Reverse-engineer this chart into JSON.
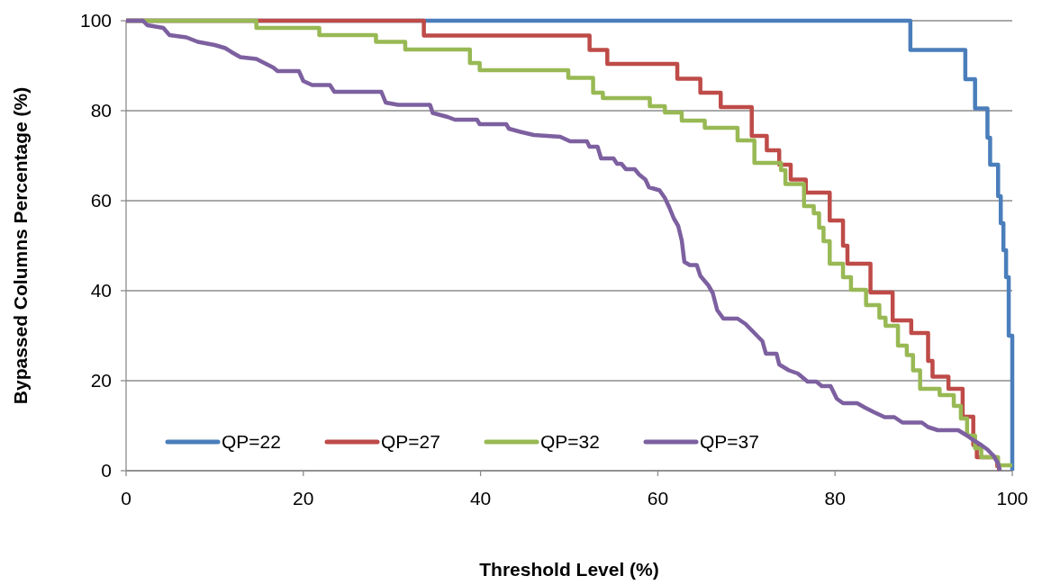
{
  "chart_data": {
    "type": "step",
    "xlabel": "Threshold Level (%)",
    "ylabel": "Bypassed Columns Percentage (%)",
    "xlim": [
      0,
      100
    ],
    "ylim": [
      0,
      100
    ],
    "xticks": [
      0,
      20,
      40,
      60,
      80,
      100
    ],
    "yticks": [
      0,
      20,
      40,
      60,
      80,
      100
    ],
    "grid": "y",
    "legend": "bottom left",
    "line_style": "solid",
    "marker": "none",
    "series": [
      {
        "name": "QP=22",
        "color": "#4a7ebb",
        "x": [
          0,
          88.5,
          94.7,
          95.8,
          97.2,
          97.5,
          98.4,
          98.7,
          99.0,
          99.3,
          99.6,
          100
        ],
        "values": [
          100,
          93.5,
          87,
          80.5,
          74,
          68,
          61,
          55,
          49,
          43,
          30,
          0
        ]
      },
      {
        "name": "QP=27",
        "color": "#be4b48",
        "x": [
          0,
          33.6,
          52.3,
          54.3,
          62.2,
          64.8,
          67.1,
          70.6,
          72.3,
          73.7,
          75.0,
          76.7,
          79.4,
          80.9,
          81.4,
          84.0,
          86.5,
          88.6,
          90.5,
          91.0,
          92.8,
          94.4,
          95.6,
          96.0,
          98.3,
          98.5
        ],
        "values": [
          100,
          96.7,
          93.5,
          90.4,
          87.1,
          84,
          80.8,
          74.4,
          71.2,
          68,
          64.7,
          61.8,
          55.6,
          50,
          46,
          39.6,
          33.4,
          30.6,
          24.4,
          20.9,
          18.2,
          12,
          5.7,
          3,
          1,
          0
        ]
      },
      {
        "name": "QP=32",
        "color": "#98b954",
        "x": [
          0,
          14.7,
          21.8,
          28.2,
          31.5,
          38.8,
          39.9,
          49.9,
          52.7,
          53.8,
          59.1,
          60.8,
          62.7,
          65.3,
          69.0,
          70.9,
          73.9,
          74.4,
          76.5,
          77.6,
          78.2,
          78.7,
          79.4,
          80.9,
          81.8,
          83.5,
          85.0,
          85.7,
          87.1,
          88.1,
          88.8,
          89.6,
          91.8,
          93.4,
          94.2,
          94.9,
          95.8,
          96.5,
          98.4,
          100
        ],
        "values": [
          100,
          98.4,
          96.8,
          95.3,
          93.6,
          90.6,
          89,
          87.3,
          84,
          82.8,
          81,
          79.6,
          77.8,
          76.2,
          73.4,
          68.4,
          66.8,
          63.7,
          58.8,
          57.2,
          54,
          51,
          46,
          43,
          40.2,
          36.8,
          34,
          32.2,
          27.8,
          25.7,
          22.3,
          18.2,
          16.8,
          14.4,
          11.6,
          7.8,
          5,
          3,
          1.2,
          1.2
        ]
      },
      {
        "name": "QP=37",
        "type": "line",
        "color": "#7d60a0",
        "x": [
          0,
          1.9,
          2.4,
          4.2,
          4.9,
          6.8,
          8.1,
          10,
          11.2,
          12,
          12.9,
          14.7,
          15.6,
          16.6,
          17.1,
          19.5,
          20,
          21,
          23,
          23.5,
          28.8,
          29.3,
          30.7,
          34.3,
          34.6,
          36.3,
          37.1,
          39.6,
          39.9,
          42.9,
          43.2,
          44.5,
          46,
          49,
          50.1,
          52,
          52.3,
          53.2,
          53.6,
          55,
          55.4,
          55.9,
          56.4,
          57.4,
          57.9,
          58.6,
          59,
          60.2,
          60.8,
          61.3,
          61.8,
          62.3,
          62.7,
          63.0,
          63.6,
          64.4,
          64.8,
          65.7,
          66.2,
          66.7,
          67.4,
          69.0,
          69.9,
          70.9,
          71.8,
          72.2,
          73.4,
          73.7,
          74.8,
          75.8,
          76.9,
          77.9,
          78.5,
          79.5,
          80.2,
          80.9,
          82.5,
          83.4,
          84.4,
          85.6,
          86.7,
          87.6,
          89.8,
          90.5,
          91.6,
          93.9,
          94.9,
          95.6,
          96.5,
          97.2,
          97.9,
          98.4,
          98.6
        ],
        "values": [
          100,
          100,
          99,
          98.4,
          96.8,
          96.3,
          95.3,
          94.6,
          93.9,
          92.9,
          91.9,
          91.5,
          90.6,
          89.6,
          88.8,
          88.8,
          86.6,
          85.7,
          85.7,
          84.2,
          84.2,
          81.8,
          81.3,
          81.3,
          79.5,
          78.6,
          78,
          78,
          77,
          77,
          76,
          75.3,
          74.6,
          74.2,
          73.2,
          73.2,
          72,
          72,
          69.4,
          69.4,
          68.2,
          68.2,
          67,
          67,
          65.8,
          64.7,
          63,
          62.3,
          60.6,
          58.5,
          56.1,
          54.4,
          51.2,
          46.4,
          45.7,
          45.7,
          43.3,
          41.2,
          39.5,
          35.7,
          33.8,
          33.8,
          32.6,
          30.6,
          28.8,
          26,
          26,
          23.6,
          22.3,
          21.6,
          19.8,
          19.8,
          18.8,
          18.8,
          16,
          15,
          15,
          14,
          13,
          11.9,
          11.9,
          10.7,
          10.7,
          9.7,
          9,
          9,
          7.8,
          6.8,
          5.7,
          4.7,
          3.3,
          1.6,
          0
        ]
      }
    ]
  }
}
